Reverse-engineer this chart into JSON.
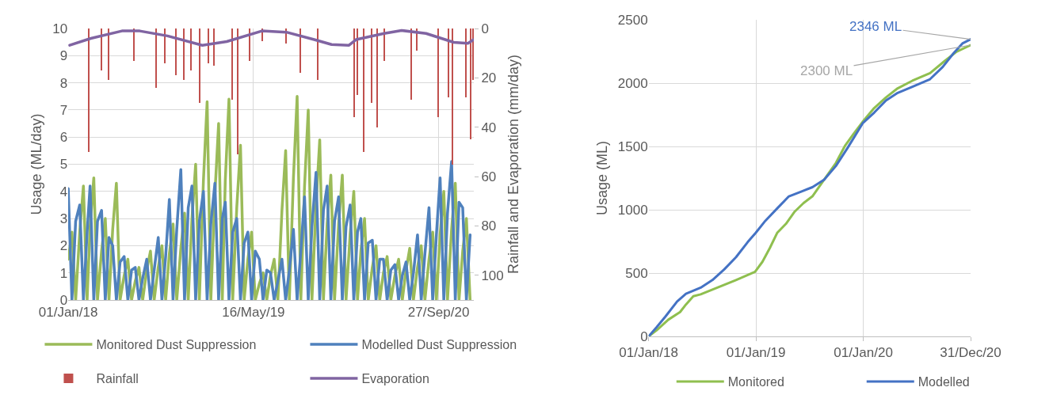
{
  "chart_data": [
    {
      "type": "line",
      "ylabel": "Usage (ML/day)",
      "y2label": "Rainfall and Evaporation (mm/day)",
      "xlim": [
        "2018-01-01",
        "2020-12-31"
      ],
      "xticks": [
        {
          "value": "2018-01-01",
          "label": "01/Jan/18"
        },
        {
          "value": "2019-05-16",
          "label": "16/May/19"
        },
        {
          "value": "2020-09-27",
          "label": "27/Sep/20"
        }
      ],
      "ylim": [
        0,
        10
      ],
      "yticks": [
        0,
        1,
        2,
        3,
        4,
        5,
        6,
        7,
        8,
        9,
        10
      ],
      "y2lim": [
        110,
        0
      ],
      "y2ticks": [
        0,
        20,
        40,
        60,
        80,
        100
      ],
      "grid": true,
      "legend": "bottom",
      "x": [
        "2018-01-01",
        "2018-01-11",
        "2018-01-21",
        "2018-02-01",
        "2018-02-11",
        "2018-02-21",
        "2018-03-01",
        "2018-03-11",
        "2018-03-21",
        "2018-04-01",
        "2018-04-11",
        "2018-04-21",
        "2018-05-01",
        "2018-05-11",
        "2018-05-21",
        "2018-06-01",
        "2018-06-11",
        "2018-06-21",
        "2018-07-01",
        "2018-07-11",
        "2018-07-21",
        "2018-08-01",
        "2018-08-11",
        "2018-08-21",
        "2018-09-01",
        "2018-09-11",
        "2018-09-21",
        "2018-10-01",
        "2018-10-11",
        "2018-10-21",
        "2018-11-01",
        "2018-11-11",
        "2018-11-21",
        "2018-12-01",
        "2018-12-11",
        "2018-12-21",
        "2019-01-01",
        "2019-01-11",
        "2019-01-21",
        "2019-02-01",
        "2019-02-11",
        "2019-02-21",
        "2019-03-01",
        "2019-03-11",
        "2019-03-21",
        "2019-04-01",
        "2019-04-11",
        "2019-04-21",
        "2019-05-01",
        "2019-05-11",
        "2019-05-21",
        "2019-06-01",
        "2019-06-11",
        "2019-06-21",
        "2019-07-01",
        "2019-07-11",
        "2019-07-21",
        "2019-08-01",
        "2019-08-11",
        "2019-08-21",
        "2019-09-01",
        "2019-09-11",
        "2019-09-21",
        "2019-10-01",
        "2019-10-11",
        "2019-10-21",
        "2019-11-01",
        "2019-11-11",
        "2019-11-21",
        "2019-12-01",
        "2019-12-11",
        "2019-12-21",
        "2020-01-01",
        "2020-01-11",
        "2020-01-21",
        "2020-02-01",
        "2020-02-11",
        "2020-02-21",
        "2020-03-01",
        "2020-03-11",
        "2020-03-21",
        "2020-04-01",
        "2020-04-11",
        "2020-04-21",
        "2020-05-01",
        "2020-05-11",
        "2020-05-21",
        "2020-06-01",
        "2020-06-11",
        "2020-06-21",
        "2020-07-01",
        "2020-07-11",
        "2020-07-21",
        "2020-08-01",
        "2020-08-11",
        "2020-08-21",
        "2020-09-01",
        "2020-09-11",
        "2020-09-21",
        "2020-10-01",
        "2020-10-11",
        "2020-10-21",
        "2020-11-01",
        "2020-11-11",
        "2020-11-21",
        "2020-12-01",
        "2020-12-11",
        "2020-12-21"
      ],
      "series": [
        {
          "name": "Monitored Dust Suppression",
          "color": "#9bbb59",
          "values": [
            1.5,
            2.5,
            0,
            2.5,
            4.2,
            0,
            2.7,
            4.5,
            0,
            1.8,
            3.0,
            0,
            2.6,
            4.3,
            0,
            0.9,
            1.5,
            0,
            0.7,
            1.2,
            0,
            1.1,
            1.8,
            0,
            1.2,
            2.0,
            0,
            1.7,
            2.8,
            0,
            1.9,
            3.2,
            0,
            3.0,
            5.0,
            0,
            4.4,
            7.3,
            0,
            3.9,
            6.5,
            0,
            4.4,
            7.4,
            0,
            3.4,
            5.7,
            0,
            1.5,
            2.5,
            0,
            0.6,
            1.0,
            0,
            0.9,
            1.5,
            0,
            3.3,
            5.5,
            0,
            4.5,
            7.5,
            0,
            4.2,
            7.0,
            0,
            3.5,
            5.9,
            0,
            2.8,
            4.6,
            0,
            2.8,
            4.6,
            0,
            2.4,
            4.0,
            0,
            1.8,
            3.0,
            0,
            1.2,
            2.0,
            0,
            1.0,
            1.6,
            0,
            0.9,
            1.5,
            0,
            1.1,
            1.9,
            0,
            1.2,
            2.0,
            0,
            1.5,
            2.5,
            0,
            2.4,
            4.0,
            0,
            2.6,
            4.3,
            0,
            1.8,
            3.0,
            0
          ]
        },
        {
          "name": "Modelled Dust Suppression",
          "color": "#4f81bd",
          "values": [
            4.1,
            0,
            2.9,
            3.5,
            0,
            2.5,
            4.2,
            0,
            2.9,
            3.3,
            0,
            2.3,
            2.0,
            0,
            1.4,
            1.6,
            0,
            1.1,
            1.2,
            0,
            0.8,
            1.5,
            0,
            1.1,
            2.3,
            0,
            1.6,
            3.7,
            0,
            2.6,
            4.8,
            0,
            3.4,
            4.2,
            0,
            2.9,
            4.0,
            0,
            2.8,
            4.3,
            0,
            3.0,
            3.6,
            0,
            2.5,
            3.0,
            0,
            2.1,
            2.5,
            0,
            1.8,
            1.5,
            0,
            1.1,
            1.0,
            0,
            0.7,
            1.5,
            0,
            1.1,
            2.6,
            0,
            1.8,
            3.8,
            0,
            2.7,
            4.7,
            0,
            3.3,
            4.2,
            0,
            2.9,
            3.8,
            0,
            2.7,
            3.5,
            0,
            2.5,
            3.0,
            0,
            2.1,
            2.2,
            0,
            1.5,
            1.5,
            0,
            1.1,
            1.3,
            0,
            0.9,
            1.4,
            0,
            1.0,
            2.4,
            0,
            1.7,
            3.4,
            0,
            2.4,
            4.5,
            0,
            3.2,
            5.1,
            0,
            3.6,
            3.4,
            0,
            2.4
          ]
        },
        {
          "name": "Rainfall",
          "color": "#c0504d",
          "type": "bar",
          "axis": "y2",
          "x": [
            "2018-02-26",
            "2018-03-31",
            "2018-04-21",
            "2018-06-28",
            "2018-08-26",
            "2018-09-20",
            "2018-10-20",
            "2018-11-09",
            "2018-11-29",
            "2018-12-22",
            "2019-01-15",
            "2019-01-29",
            "2019-03-20",
            "2019-04-03",
            "2019-05-06",
            "2019-06-09",
            "2019-08-13",
            "2019-09-20",
            "2019-11-06",
            "2020-02-12",
            "2020-02-20",
            "2020-03-09",
            "2020-03-31",
            "2020-04-14",
            "2020-05-03",
            "2020-07-16",
            "2020-07-31",
            "2020-09-26",
            "2020-10-24",
            "2020-11-03",
            "2020-12-10",
            "2020-12-23",
            "2020-12-29"
          ],
          "values": [
            50,
            17,
            21,
            13,
            24,
            14,
            19,
            21,
            17,
            30,
            14,
            15,
            29,
            51,
            13,
            5,
            6,
            18,
            21,
            36,
            27,
            50,
            30,
            40,
            13,
            29,
            9,
            36,
            28,
            55,
            28,
            45,
            21
          ]
        },
        {
          "name": "Evaporation",
          "color": "#8064a2",
          "axis": "y2",
          "x": [
            "2018-01-05",
            "2018-03-03",
            "2018-05-26",
            "2018-07-13",
            "2018-09-26",
            "2018-12-29",
            "2019-03-05",
            "2019-06-08",
            "2019-08-13",
            "2019-10-27",
            "2019-12-13",
            "2020-01-29",
            "2020-02-17",
            "2020-05-03",
            "2020-06-19",
            "2020-08-24",
            "2020-11-07",
            "2020-12-15",
            "2020-12-31"
          ],
          "values": [
            6.8,
            4,
            1,
            1,
            3,
            6.8,
            5.3,
            1,
            1.5,
            4.5,
            6.5,
            6.8,
            4.5,
            2,
            0.8,
            2,
            5.6,
            6,
            4.5
          ]
        }
      ]
    },
    {
      "type": "line",
      "ylabel": "Usage (ML)",
      "xlim": [
        "2018-01-01",
        "2020-12-31"
      ],
      "xticks": [
        {
          "value": "2018-01-01",
          "label": "01/Jan/18"
        },
        {
          "value": "2019-01-01",
          "label": "01/Jan/19"
        },
        {
          "value": "2020-01-01",
          "label": "01/Jan/20"
        },
        {
          "value": "2020-12-31",
          "label": "31/Dec/20"
        }
      ],
      "ylim": [
        0,
        2500
      ],
      "yticks": [
        0,
        500,
        1000,
        1500,
        2000,
        2500
      ],
      "grid": true,
      "legend": "bottom",
      "annotations": [
        {
          "text": "2346 ML",
          "x": "2020-12-31",
          "y": 2346
        },
        {
          "text": "2300 ML",
          "x": "2020-12-31",
          "y": 2300
        }
      ],
      "series": [
        {
          "name": "Monitored",
          "color": "#8fbf4f",
          "x": [
            "2018-01-01",
            "2018-01-28",
            "2018-03-09",
            "2018-04-18",
            "2018-05-08",
            "2018-06-02",
            "2018-06-27",
            "2018-09-05",
            "2018-10-25",
            "2018-12-29",
            "2019-01-23",
            "2019-02-17",
            "2019-03-14",
            "2019-04-13",
            "2019-05-13",
            "2019-06-12",
            "2019-07-12",
            "2019-08-21",
            "2019-09-30",
            "2019-10-30",
            "2019-11-29",
            "2019-12-30",
            "2020-02-07",
            "2020-03-18",
            "2020-04-27",
            "2020-06-16",
            "2020-08-15",
            "2020-10-04",
            "2020-11-13",
            "2020-12-31"
          ],
          "values": [
            0,
            48,
            132,
            192,
            252,
            317,
            332,
            397,
            445,
            510,
            589,
            697,
            817,
            889,
            986,
            1053,
            1106,
            1238,
            1370,
            1502,
            1599,
            1695,
            1803,
            1887,
            1959,
            2019,
            2079,
            2175,
            2248,
            2300
          ]
        },
        {
          "name": "Modelled",
          "color": "#4472c4",
          "x": [
            "2018-01-01",
            "2018-01-28",
            "2018-02-27",
            "2018-04-08",
            "2018-05-08",
            "2018-06-27",
            "2018-08-06",
            "2018-09-15",
            "2018-10-25",
            "2018-12-04",
            "2018-12-31",
            "2019-02-02",
            "2019-03-14",
            "2019-04-23",
            "2019-06-02",
            "2019-07-12",
            "2019-08-21",
            "2019-09-30",
            "2019-11-09",
            "2019-12-30",
            "2020-02-07",
            "2020-03-18",
            "2020-04-27",
            "2020-06-16",
            "2020-08-15",
            "2020-09-27",
            "2020-11-03",
            "2020-12-03",
            "2020-12-31"
          ],
          "values": [
            0,
            72,
            156,
            276,
            337,
            385,
            445,
            529,
            625,
            745,
            817,
            913,
            1010,
            1106,
            1142,
            1178,
            1238,
            1346,
            1490,
            1683,
            1767,
            1863,
            1923,
            1971,
            2031,
            2127,
            2236,
            2313,
            2346
          ]
        }
      ]
    }
  ]
}
